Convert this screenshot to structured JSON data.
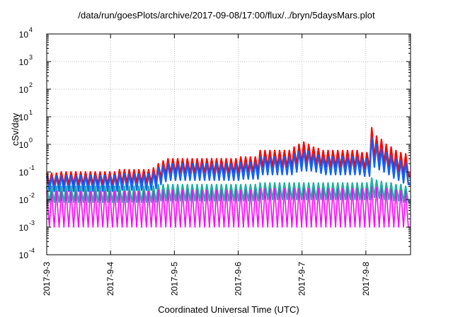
{
  "chart_data": {
    "type": "line",
    "title": "/data/run/goesPlots/archive/2017-09-08/17:00/flux/../bryn/5daysMars.plot",
    "xlabel": "Coordinated Universal Time (UTC)",
    "ylabel": "cSv/day",
    "y_scale": "log",
    "ylim": [
      0.0001,
      10000
    ],
    "xlim": [
      "2017-09-03",
      "2017-09-08 17:00"
    ],
    "grid": true,
    "x_ticks": [
      "2017-9-3",
      "2017-9-4",
      "2017-9-5",
      "2017-9-6",
      "2017-9-7",
      "2017-9-8"
    ],
    "y_ticks": [
      {
        "base": "10",
        "exp": "-4",
        "value": 0.0001
      },
      {
        "base": "10",
        "exp": "-3",
        "value": 0.001
      },
      {
        "base": "10",
        "exp": "-2",
        "value": 0.01
      },
      {
        "base": "10",
        "exp": "-1",
        "value": 0.1
      },
      {
        "base": "10",
        "exp": "0",
        "value": 1
      },
      {
        "base": "10",
        "exp": "1",
        "value": 10
      },
      {
        "base": "10",
        "exp": "2",
        "value": 100
      },
      {
        "base": "10",
        "exp": "3",
        "value": 1000
      },
      {
        "base": "10",
        "exp": "4",
        "value": 10000
      }
    ],
    "series": [
      {
        "color": "#ff0000",
        "peaks": [
          0.09,
          0.09,
          0.09,
          0.1,
          0.1,
          0.1,
          0.1,
          0.1,
          0.1,
          0.1,
          0.1,
          0.1,
          0.1,
          0.1,
          0.1,
          0.12,
          0.12,
          0.12,
          0.12,
          0.12,
          0.12,
          0.12,
          0.14,
          0.2,
          0.25,
          0.3,
          0.3,
          0.3,
          0.3,
          0.3,
          0.3,
          0.3,
          0.3,
          0.3,
          0.3,
          0.3,
          0.3,
          0.3,
          0.3,
          0.3,
          0.35,
          0.35,
          0.35,
          0.35,
          0.6,
          0.6,
          0.6,
          0.6,
          0.6,
          0.6,
          0.6,
          0.8,
          1.0,
          1.2,
          1.0,
          0.8,
          0.7,
          0.6,
          0.6,
          0.6,
          0.6,
          0.6,
          0.6,
          0.6,
          0.6,
          0.5,
          0.5,
          4.0,
          2.0,
          1.5,
          1.0,
          0.8,
          0.6,
          0.5,
          0.45
        ],
        "troughs": [
          0.035,
          0.035,
          0.035,
          0.035,
          0.035,
          0.035,
          0.035,
          0.035,
          0.035,
          0.035,
          0.035,
          0.035,
          0.035,
          0.035,
          0.035,
          0.04,
          0.04,
          0.04,
          0.04,
          0.04,
          0.04,
          0.04,
          0.045,
          0.06,
          0.08,
          0.09,
          0.09,
          0.09,
          0.09,
          0.09,
          0.09,
          0.09,
          0.09,
          0.09,
          0.09,
          0.09,
          0.09,
          0.09,
          0.09,
          0.09,
          0.1,
          0.1,
          0.1,
          0.1,
          0.15,
          0.15,
          0.15,
          0.15,
          0.15,
          0.15,
          0.15,
          0.18,
          0.2,
          0.2,
          0.2,
          0.18,
          0.17,
          0.15,
          0.15,
          0.15,
          0.15,
          0.15,
          0.15,
          0.15,
          0.15,
          0.13,
          0.13,
          0.3,
          0.25,
          0.2,
          0.15,
          0.12,
          0.1,
          0.08,
          0.07
        ]
      },
      {
        "color": "#1060ff",
        "peaks": [
          0.07,
          0.07,
          0.07,
          0.075,
          0.075,
          0.075,
          0.075,
          0.075,
          0.075,
          0.075,
          0.075,
          0.075,
          0.075,
          0.075,
          0.075,
          0.085,
          0.085,
          0.085,
          0.085,
          0.085,
          0.085,
          0.085,
          0.1,
          0.14,
          0.17,
          0.2,
          0.2,
          0.2,
          0.2,
          0.2,
          0.2,
          0.2,
          0.2,
          0.2,
          0.2,
          0.2,
          0.2,
          0.2,
          0.2,
          0.2,
          0.22,
          0.22,
          0.22,
          0.22,
          0.35,
          0.35,
          0.35,
          0.35,
          0.35,
          0.35,
          0.35,
          0.45,
          0.55,
          0.6,
          0.55,
          0.45,
          0.4,
          0.35,
          0.35,
          0.35,
          0.35,
          0.35,
          0.35,
          0.35,
          0.35,
          0.3,
          0.3,
          1.8,
          1.0,
          0.7,
          0.5,
          0.4,
          0.3,
          0.25,
          0.22
        ],
        "troughs": [
          0.02,
          0.02,
          0.02,
          0.02,
          0.02,
          0.02,
          0.02,
          0.02,
          0.02,
          0.02,
          0.02,
          0.02,
          0.02,
          0.02,
          0.02,
          0.022,
          0.022,
          0.022,
          0.022,
          0.022,
          0.022,
          0.022,
          0.025,
          0.035,
          0.045,
          0.05,
          0.05,
          0.05,
          0.05,
          0.05,
          0.05,
          0.05,
          0.05,
          0.05,
          0.05,
          0.05,
          0.05,
          0.05,
          0.05,
          0.05,
          0.055,
          0.055,
          0.055,
          0.055,
          0.08,
          0.08,
          0.08,
          0.08,
          0.08,
          0.08,
          0.08,
          0.1,
          0.11,
          0.11,
          0.11,
          0.1,
          0.09,
          0.08,
          0.08,
          0.08,
          0.08,
          0.08,
          0.08,
          0.08,
          0.08,
          0.07,
          0.07,
          0.15,
          0.12,
          0.1,
          0.08,
          0.06,
          0.05,
          0.04,
          0.035
        ]
      },
      {
        "color": "#20b0a0",
        "peaks": [
          0.03,
          0.03,
          0.03,
          0.03,
          0.03,
          0.03,
          0.03,
          0.03,
          0.03,
          0.03,
          0.03,
          0.03,
          0.03,
          0.03,
          0.03,
          0.03,
          0.03,
          0.03,
          0.03,
          0.03,
          0.03,
          0.03,
          0.03,
          0.035,
          0.035,
          0.035,
          0.035,
          0.035,
          0.035,
          0.035,
          0.035,
          0.035,
          0.035,
          0.035,
          0.035,
          0.035,
          0.035,
          0.035,
          0.035,
          0.035,
          0.035,
          0.035,
          0.035,
          0.035,
          0.04,
          0.04,
          0.04,
          0.04,
          0.04,
          0.04,
          0.04,
          0.04,
          0.04,
          0.04,
          0.04,
          0.04,
          0.04,
          0.04,
          0.04,
          0.04,
          0.04,
          0.04,
          0.04,
          0.04,
          0.04,
          0.04,
          0.04,
          0.06,
          0.05,
          0.045,
          0.04,
          0.04,
          0.035,
          0.035,
          0.03
        ],
        "troughs": [
          0.008,
          0.008,
          0.008,
          0.008,
          0.008,
          0.008,
          0.008,
          0.008,
          0.008,
          0.008,
          0.008,
          0.008,
          0.008,
          0.008,
          0.008,
          0.008,
          0.008,
          0.008,
          0.008,
          0.008,
          0.008,
          0.008,
          0.008,
          0.009,
          0.009,
          0.009,
          0.009,
          0.009,
          0.009,
          0.009,
          0.009,
          0.009,
          0.009,
          0.009,
          0.009,
          0.009,
          0.009,
          0.009,
          0.009,
          0.009,
          0.009,
          0.009,
          0.009,
          0.009,
          0.01,
          0.01,
          0.01,
          0.01,
          0.01,
          0.01,
          0.01,
          0.01,
          0.01,
          0.01,
          0.01,
          0.01,
          0.01,
          0.01,
          0.01,
          0.01,
          0.01,
          0.01,
          0.01,
          0.01,
          0.01,
          0.01,
          0.01,
          0.012,
          0.011,
          0.01,
          0.01,
          0.009,
          0.009,
          0.008,
          0.008
        ]
      },
      {
        "color": "#ff00ff",
        "peaks": [
          0.02,
          0.02,
          0.02,
          0.02,
          0.02,
          0.02,
          0.02,
          0.02,
          0.02,
          0.02,
          0.02,
          0.02,
          0.02,
          0.02,
          0.02,
          0.02,
          0.02,
          0.02,
          0.02,
          0.02,
          0.02,
          0.02,
          0.02,
          0.022,
          0.022,
          0.022,
          0.022,
          0.022,
          0.022,
          0.022,
          0.022,
          0.022,
          0.022,
          0.022,
          0.022,
          0.022,
          0.022,
          0.022,
          0.022,
          0.022,
          0.022,
          0.022,
          0.022,
          0.022,
          0.025,
          0.025,
          0.025,
          0.025,
          0.025,
          0.025,
          0.025,
          0.025,
          0.025,
          0.025,
          0.025,
          0.025,
          0.025,
          0.025,
          0.025,
          0.025,
          0.025,
          0.025,
          0.025,
          0.025,
          0.025,
          0.025,
          0.025,
          0.03,
          0.028,
          0.026,
          0.025,
          0.024,
          0.022,
          0.021,
          0.02
        ],
        "troughs": [
          0.001,
          0.001,
          0.001,
          0.001,
          0.001,
          0.001,
          0.001,
          0.001,
          0.001,
          0.001,
          0.001,
          0.001,
          0.001,
          0.001,
          0.001,
          0.001,
          0.001,
          0.001,
          0.001,
          0.001,
          0.001,
          0.001,
          0.001,
          0.001,
          0.001,
          0.001,
          0.001,
          0.001,
          0.001,
          0.001,
          0.001,
          0.001,
          0.001,
          0.001,
          0.001,
          0.001,
          0.001,
          0.001,
          0.001,
          0.001,
          0.001,
          0.001,
          0.001,
          0.001,
          0.001,
          0.001,
          0.001,
          0.001,
          0.001,
          0.001,
          0.001,
          0.001,
          0.001,
          0.001,
          0.001,
          0.001,
          0.001,
          0.001,
          0.001,
          0.001,
          0.001,
          0.001,
          0.001,
          0.001,
          0.001,
          0.001,
          0.001,
          0.001,
          0.001,
          0.001,
          0.001,
          0.001,
          0.001,
          0.001,
          0.001
        ]
      }
    ]
  }
}
